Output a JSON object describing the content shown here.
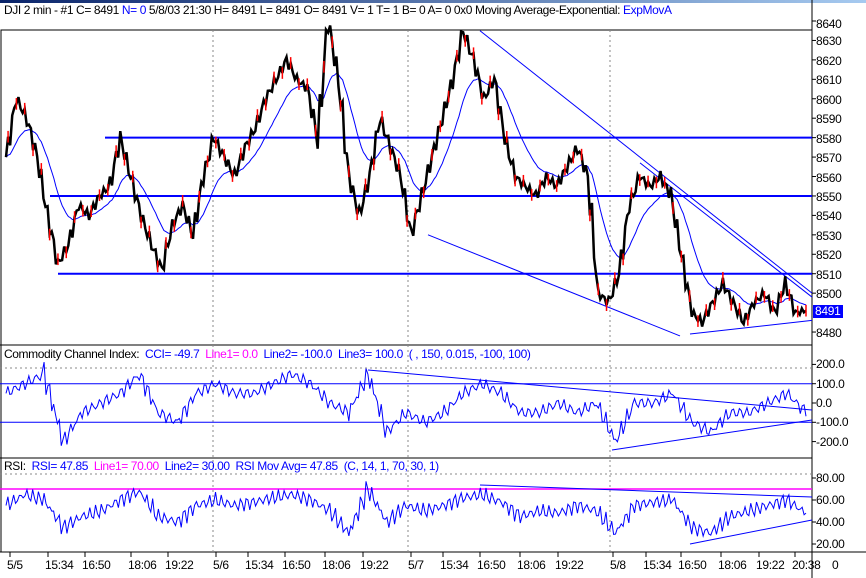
{
  "header": {
    "symbol": "DJI",
    "interval": "2 min - #1",
    "close": "C= 8491",
    "n": "N= 0",
    "date": "5/8/03",
    "time": "21:30",
    "high": "H= 8491",
    "low": "L= 8491",
    "open": "O= 8491",
    "v": "V= 1",
    "t": "T= 1",
    "b": "B= 0",
    "a": "A= 0",
    "size": "0x0",
    "study": "Moving Average-Exponential:",
    "study_name": "ExpMovA"
  },
  "cci_header": {
    "label": "Commodity Channel Index:",
    "cci": "CCI= -49.7",
    "line1": "Line1= 0.0",
    "line2": "Line2= -100.0",
    "line3": "Line3= 100.0",
    "params": "( , 150, 0.015, -100, 100)"
  },
  "rsi_header": {
    "label": "RSI:",
    "rsi": "RSI= 47.85",
    "line1": "Line1= 70.00",
    "line2": "Line2= 30.00",
    "mov": "RSI Mov Avg= 47.85",
    "params": "(C, 14, 1, 70, 30, 1)"
  },
  "last_price_label": "8491",
  "time_axis_end": "0",
  "colors": {
    "price": "#000000",
    "ma": "#0000ff",
    "down": "#ff0000",
    "line1": "#ff00ff",
    "trend": "#0000ff"
  },
  "chart_data": [
    {
      "type": "line",
      "title": "DJI 2 min",
      "ylim": [
        8475,
        8645
      ],
      "yticks": [
        "8640",
        "8630",
        "8620",
        "8610",
        "8600",
        "8590",
        "8580",
        "8570",
        "8560",
        "8550",
        "8540",
        "8530",
        "8520",
        "8510",
        "8500",
        "8480"
      ],
      "xticks": [
        "5/5",
        "15:34",
        "16:50",
        "18:06",
        "19:22",
        "5/6",
        "15:34",
        "16:50",
        "18:06",
        "19:22",
        "5/7",
        "15:34",
        "16:50",
        "18:06",
        "19:22",
        "5/8",
        "15:34",
        "16:50",
        "18:06",
        "19:22",
        "20:38"
      ],
      "close": [
        8570,
        8600,
        8590,
        8570,
        8540,
        8515,
        8525,
        8545,
        8540,
        8550,
        8555,
        8580,
        8560,
        8540,
        8525,
        8512,
        8535,
        8545,
        8530,
        8560,
        8580,
        8570,
        8560,
        8575,
        8585,
        8600,
        8610,
        8620,
        8610,
        8605,
        8580,
        8640,
        8610,
        8560,
        8540,
        8560,
        8590,
        8575,
        8560,
        8530,
        8550,
        8570,
        8590,
        8610,
        8635,
        8620,
        8600,
        8610,
        8580,
        8560,
        8555,
        8550,
        8560,
        8555,
        8565,
        8575,
        8560,
        8500,
        8495,
        8510,
        8545,
        8560,
        8555,
        8560,
        8550,
        8520,
        8490,
        8485,
        8495,
        8505,
        8495,
        8485,
        8495,
        8500,
        8490,
        8505,
        8490,
        8491
      ],
      "support_resistance": [
        8580,
        8550,
        8510
      ]
    },
    {
      "type": "line",
      "title": "Commodity Channel Index",
      "ylim": [
        -250,
        250
      ],
      "yticks": [
        "200.0",
        "100.0",
        "0.0",
        "-100.0",
        "-200.0"
      ],
      "values": [
        50,
        100,
        150,
        -200,
        -50,
        0,
        50,
        150,
        -50,
        -100,
        50,
        100,
        50,
        50,
        100,
        150,
        100,
        0,
        -50,
        150,
        -150,
        -50,
        -100,
        -50,
        50,
        100,
        50,
        -50,
        -50,
        0,
        -50,
        0,
        -200,
        0,
        0,
        50,
        -100,
        -150,
        -50,
        -50,
        0,
        50,
        -49.7
      ]
    },
    {
      "type": "line",
      "title": "RSI",
      "ylim": [
        10,
        90
      ],
      "yticks": [
        "80.00",
        "60.00",
        "40.00",
        "20.00"
      ],
      "values": [
        55,
        65,
        60,
        35,
        45,
        50,
        60,
        68,
        45,
        40,
        55,
        60,
        55,
        58,
        62,
        65,
        60,
        50,
        30,
        70,
        40,
        55,
        50,
        55,
        62,
        65,
        58,
        45,
        50,
        48,
        55,
        50,
        30,
        55,
        58,
        60,
        35,
        30,
        45,
        50,
        55,
        60,
        47.85
      ]
    }
  ]
}
